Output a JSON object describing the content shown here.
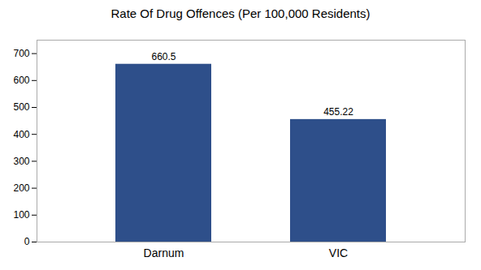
{
  "chart_data": {
    "type": "bar",
    "title": "Rate Of Drug Offences (Per 100,000 Residents)",
    "categories": [
      "Darnum",
      "VIC"
    ],
    "values": [
      660.5,
      455.22
    ],
    "color": "#2e4f8a",
    "ylim": [
      0,
      750
    ],
    "yticks": [
      0,
      100,
      200,
      300,
      400,
      500,
      600,
      700
    ],
    "grid": false,
    "data_labels": true
  }
}
